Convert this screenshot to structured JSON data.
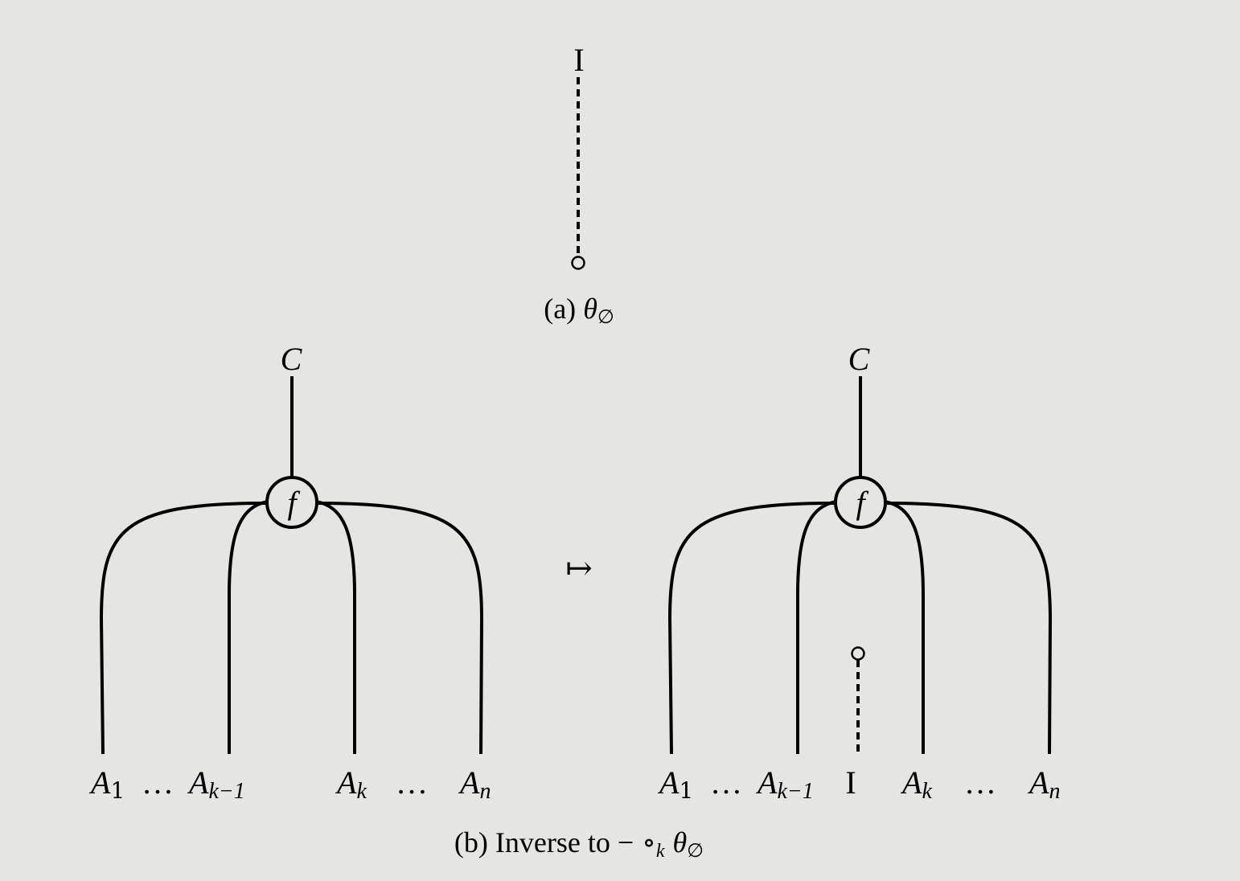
{
  "panel_a": {
    "top_label": "I",
    "caption_prefix": "(a) ",
    "caption_theta": "θ",
    "caption_sub": "∅"
  },
  "panel_b": {
    "arrow": "↦",
    "left": {
      "output_label": "C",
      "node_label": "f",
      "inputs": [
        {
          "base": "A",
          "sub": "1"
        },
        {
          "base": "…",
          "sub": ""
        },
        {
          "base": "A",
          "sub": "k−1"
        },
        {
          "base": "A",
          "sub": "k"
        },
        {
          "base": "…",
          "sub": ""
        },
        {
          "base": "A",
          "sub": "n"
        }
      ]
    },
    "right": {
      "output_label": "C",
      "node_label": "f",
      "unit_label": "I",
      "inputs": [
        {
          "base": "A",
          "sub": "1"
        },
        {
          "base": "…",
          "sub": ""
        },
        {
          "base": "A",
          "sub": "k−1"
        },
        {
          "base": "A",
          "sub": "k"
        },
        {
          "base": "…",
          "sub": ""
        },
        {
          "base": "A",
          "sub": "n"
        }
      ]
    },
    "caption_prefix": "(b) Inverse to ",
    "caption_minus": "−",
    "caption_circ": "∘",
    "caption_k": "k",
    "caption_theta": "θ",
    "caption_sub": "∅"
  }
}
